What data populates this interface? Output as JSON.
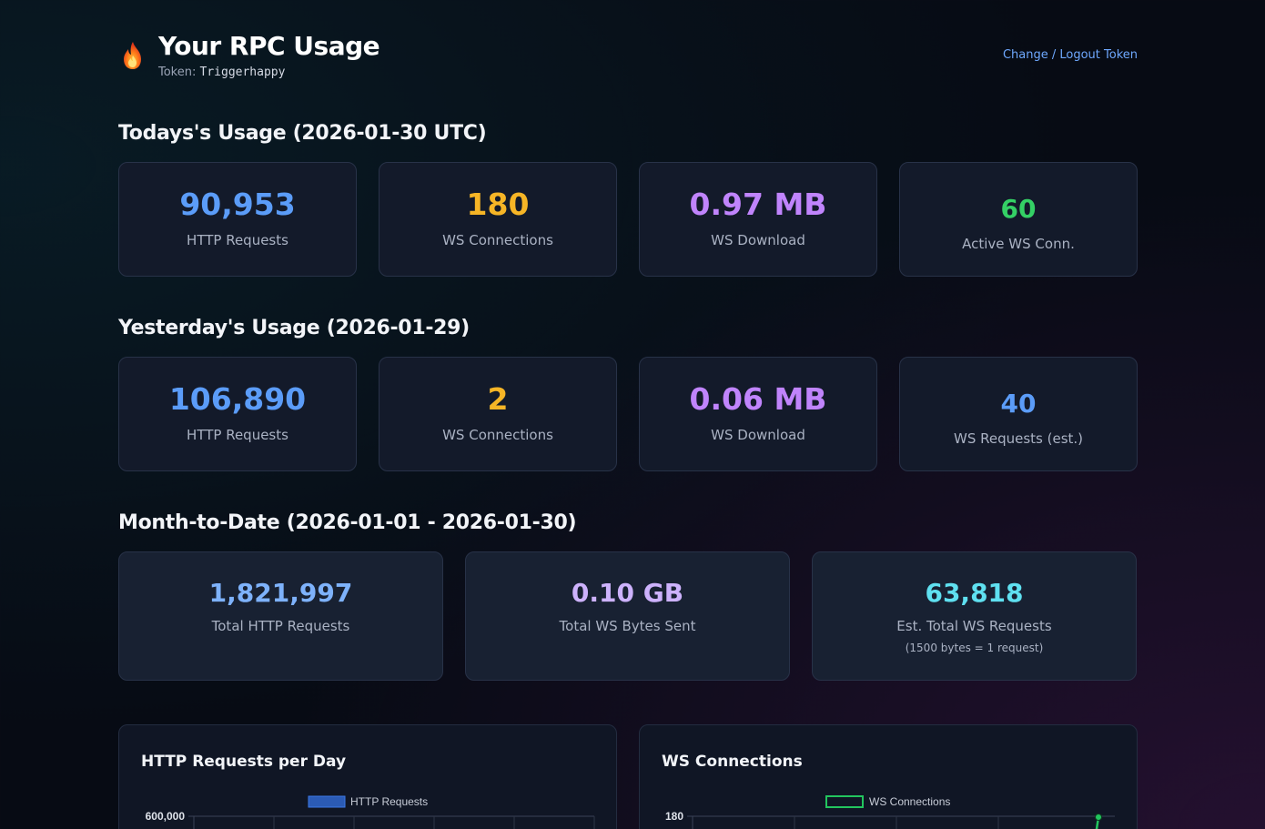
{
  "header": {
    "title": "Your RPC Usage",
    "token_label": "Token:",
    "token_value": "Triggerhappy",
    "logout_label": "Change / Logout Token",
    "logo_icon": "fire-icon"
  },
  "today": {
    "title": "Todays's Usage (2026-01-30 UTC)",
    "cards": [
      {
        "value": "90,953",
        "label": "HTTP Requests",
        "color": "#5b9cf8"
      },
      {
        "value": "180",
        "label": "WS Connections",
        "color": "#f6b526"
      },
      {
        "value": "0.97 MB",
        "label": "WS Download",
        "color": "#c084fc"
      },
      {
        "value": "60",
        "label": "Active WS Conn.",
        "color": "#34d065"
      }
    ]
  },
  "yesterday": {
    "title": "Yesterday's Usage (2026-01-29)",
    "cards": [
      {
        "value": "106,890",
        "label": "HTTP Requests",
        "color": "#5b9cf8"
      },
      {
        "value": "2",
        "label": "WS Connections",
        "color": "#f6b526"
      },
      {
        "value": "0.06 MB",
        "label": "WS Download",
        "color": "#c084fc"
      },
      {
        "value": "40",
        "label": "WS Requests (est.)",
        "color": "#5b9cf8"
      }
    ]
  },
  "month": {
    "title": "Month-to-Date (2026-01-01 - 2026-01-30)",
    "cards": [
      {
        "value": "1,821,997",
        "label": "Total HTTP Requests",
        "color": "#7eb2fb"
      },
      {
        "value": "0.10 GB",
        "label": "Total WS Bytes Sent",
        "color": "#cdb2fc"
      },
      {
        "value": "63,818",
        "label": "Est. Total WS Requests",
        "note": "(1500 bytes = 1 request)",
        "color": "#5fe0f0"
      }
    ]
  },
  "chart_data": [
    {
      "type": "bar",
      "title": "HTTP Requests per Day",
      "series": [
        {
          "name": "HTTP Requests",
          "values": []
        }
      ],
      "y_ticks_visible": [
        "600,000"
      ],
      "grid": true,
      "legend": "top-center",
      "colors": {
        "fill": "#2b5bb5",
        "border": "#3b78e7"
      }
    },
    {
      "type": "line",
      "title": "WS Connections",
      "series": [
        {
          "name": "WS Connections",
          "values": []
        }
      ],
      "y_ticks_visible": [
        "180"
      ],
      "grid": true,
      "legend": "top-center",
      "colors": {
        "line": "#22c55e"
      }
    }
  ]
}
